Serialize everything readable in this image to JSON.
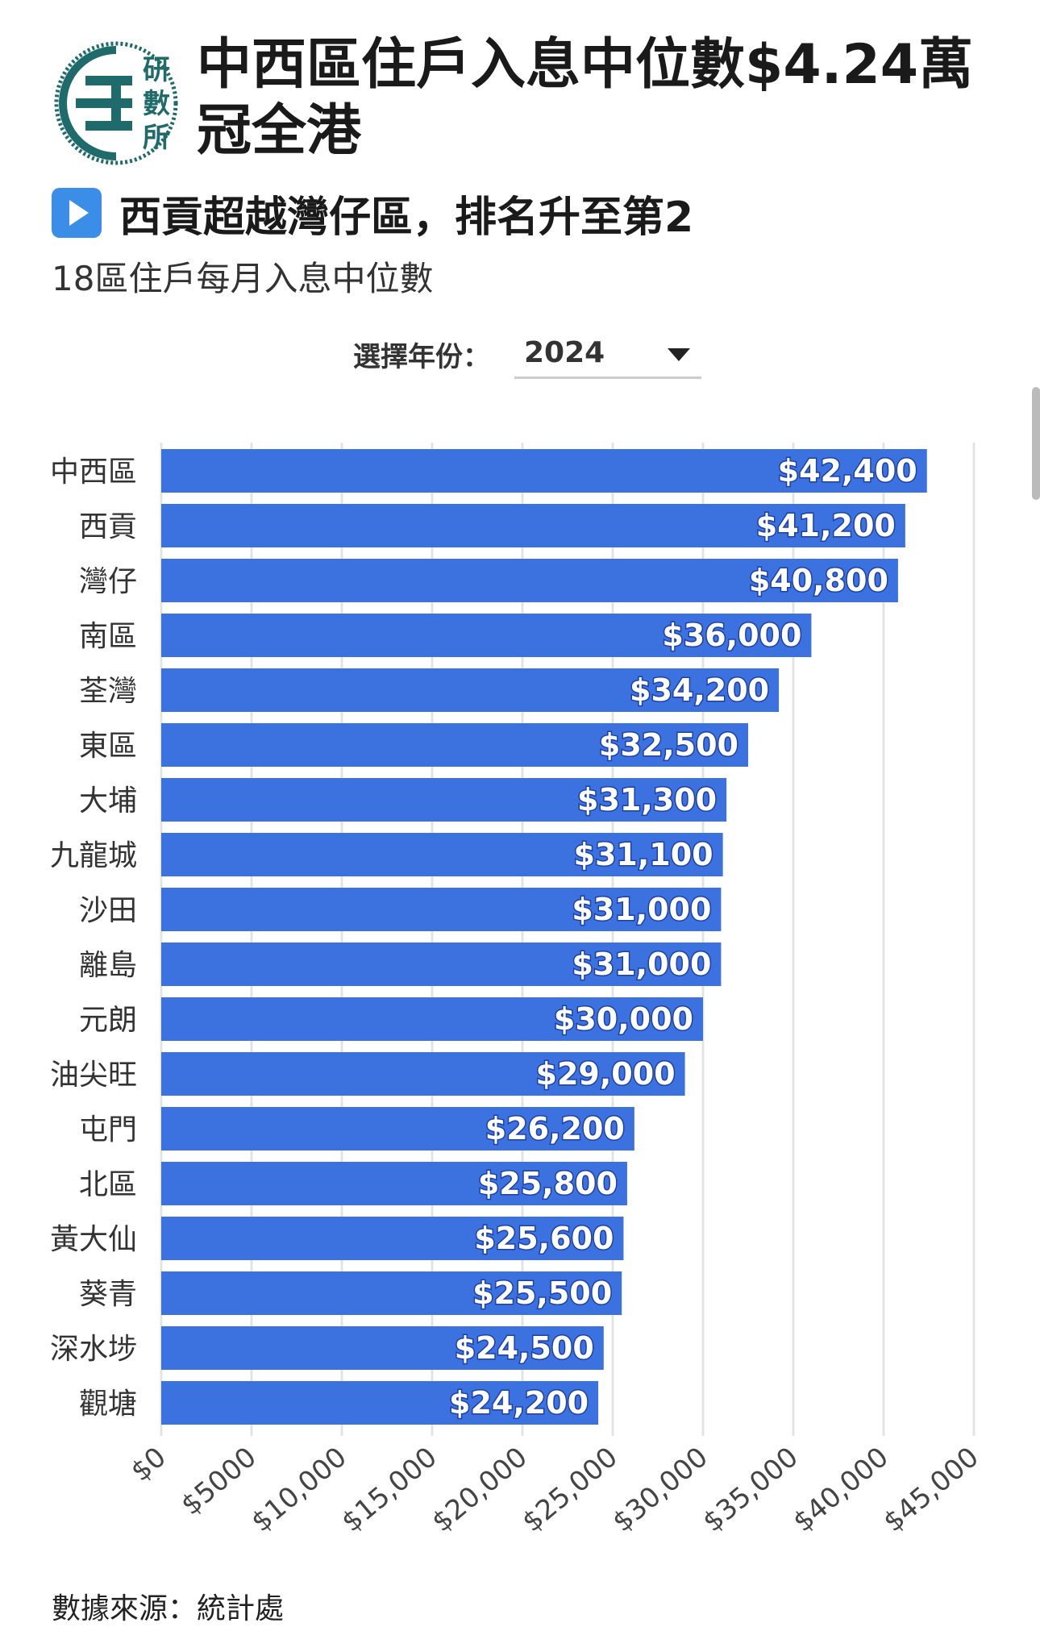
{
  "header": {
    "logo_text": [
      "研",
      "數",
      "所"
    ],
    "title": "中西區住戶入息中位數$4.24萬冠全港"
  },
  "subtitle": "西貢超越灣仔區，排名升至第2",
  "description": "18區住戶每月入息中位數",
  "selector": {
    "label": "選擇年份：",
    "value": "2024"
  },
  "source": "數據來源：統計處",
  "colors": {
    "bar": "#3b72e0",
    "grid": "#e4e4e4",
    "logo": "#1f6b6b",
    "play": "#3b8ee8"
  },
  "chart_data": {
    "type": "bar",
    "orientation": "horizontal",
    "categories": [
      "中西區",
      "西貢",
      "灣仔",
      "南區",
      "荃灣",
      "東區",
      "大埔",
      "九龍城",
      "沙田",
      "離島",
      "元朗",
      "油尖旺",
      "屯門",
      "北區",
      "黃大仙",
      "葵青",
      "深水埗",
      "觀塘"
    ],
    "values": [
      42400,
      41200,
      40800,
      36000,
      34200,
      32500,
      31300,
      31100,
      31000,
      31000,
      30000,
      29000,
      26200,
      25800,
      25600,
      25500,
      24500,
      24200
    ],
    "value_labels": [
      "$42,400",
      "$41,200",
      "$40,800",
      "$36,000",
      "$34,200",
      "$32,500",
      "$31,300",
      "$31,100",
      "$31,000",
      "$31,000",
      "$30,000",
      "$29,000",
      "$26,200",
      "$25,800",
      "$25,600",
      "$25,500",
      "$24,500",
      "$24,200"
    ],
    "xlim": [
      0,
      45000
    ],
    "x_ticks": [
      0,
      5000,
      10000,
      15000,
      20000,
      25000,
      30000,
      35000,
      40000,
      45000
    ],
    "x_tick_labels": [
      "$0",
      "$5000",
      "$10,000",
      "$15,000",
      "$20,000",
      "$25,000",
      "$30,000",
      "$35,000",
      "$40,000",
      "$45,000"
    ],
    "grid": true,
    "legend": "none"
  }
}
